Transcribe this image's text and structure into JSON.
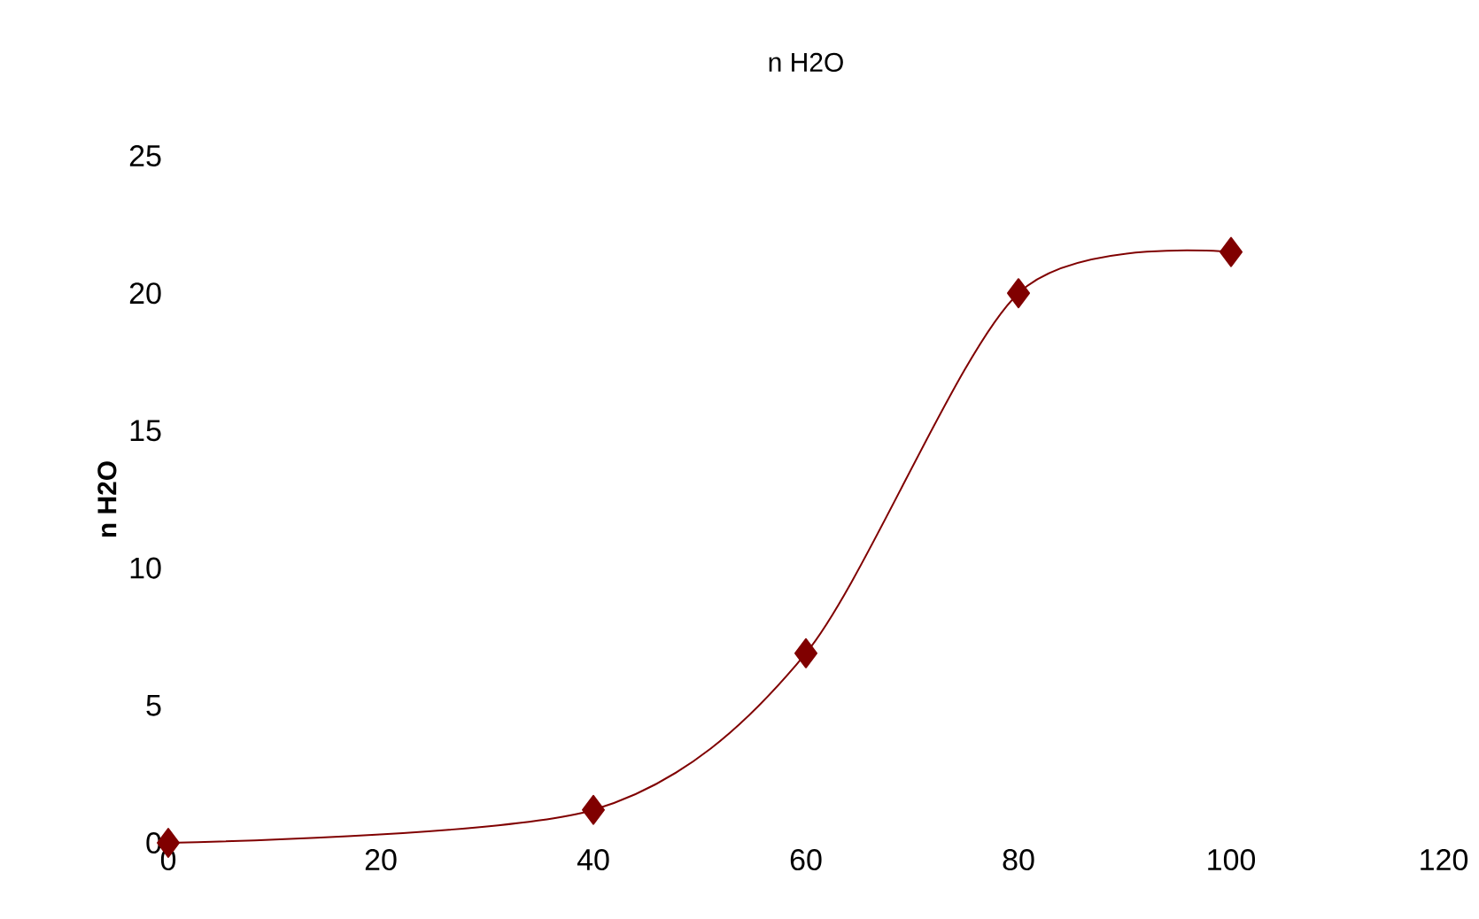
{
  "chart_data": {
    "type": "line",
    "title": "n H2O",
    "ylabel": "n H2O",
    "x": [
      0,
      40,
      60,
      80,
      100
    ],
    "series": [
      {
        "color": "#800000",
        "values": [
          0,
          1.2,
          6.9,
          20,
          21.5
        ]
      }
    ],
    "xlim": [
      0,
      120
    ],
    "ylim": [
      0,
      25
    ],
    "xticks": [
      0,
      20,
      40,
      60,
      80,
      100,
      120
    ],
    "yticks": [
      0,
      5,
      10,
      15,
      20,
      25
    ],
    "grid": false,
    "legend": false,
    "marker": "diamond",
    "line_style": "solid"
  }
}
